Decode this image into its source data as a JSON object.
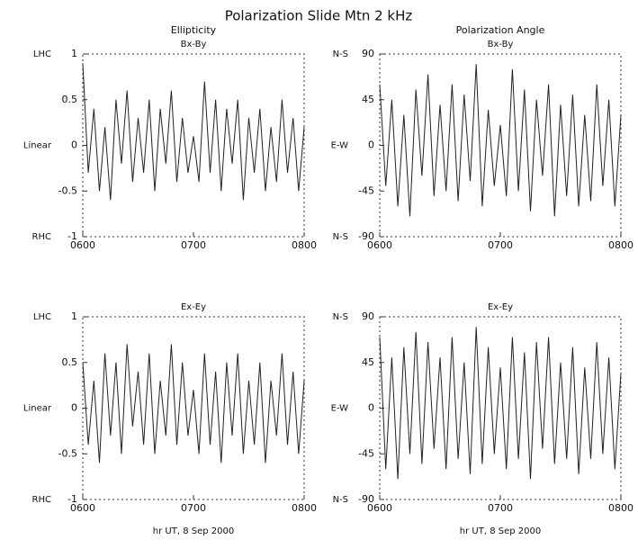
{
  "title": "Polarization Slide Mtn 2 kHz",
  "columns": [
    "Ellipticity",
    "Polarization Angle"
  ],
  "chart_data": [
    {
      "type": "line",
      "title": "Bx-By",
      "color": "#222222",
      "x": [
        6,
        6.05,
        6.1,
        6.15,
        6.2,
        6.25,
        6.3,
        6.35,
        6.4,
        6.45,
        6.5,
        6.55,
        6.6,
        6.65,
        6.7,
        6.75,
        6.8,
        6.85,
        6.9,
        6.95,
        7,
        7.05,
        7.1,
        7.15,
        7.2,
        7.25,
        7.3,
        7.35,
        7.4,
        7.45,
        7.5,
        7.55,
        7.6,
        7.65,
        7.7,
        7.75,
        7.8,
        7.85,
        7.9,
        7.95,
        8
      ],
      "values": [
        0.9,
        -0.3,
        0.4,
        -0.5,
        0.2,
        -0.6,
        0.5,
        -0.2,
        0.6,
        -0.4,
        0.3,
        -0.3,
        0.5,
        -0.5,
        0.4,
        -0.2,
        0.6,
        -0.4,
        0.3,
        -0.3,
        0.1,
        -0.4,
        0.7,
        -0.3,
        0.5,
        -0.5,
        0.4,
        -0.2,
        0.5,
        -0.6,
        0.3,
        -0.3,
        0.4,
        -0.5,
        0.2,
        -0.4,
        0.5,
        -0.3,
        0.3,
        -0.5,
        0.2
      ],
      "xlim": [
        6,
        8
      ],
      "ylim": [
        -1,
        1
      ],
      "xticks": [
        {
          "value": 6,
          "label": "0600"
        },
        {
          "value": 7,
          "label": "0700"
        },
        {
          "value": 8,
          "label": "0800"
        }
      ],
      "yticks": [
        -1,
        -0.5,
        0,
        0.5,
        1
      ],
      "y_side_labels": [
        {
          "value": 1,
          "label": "LHC"
        },
        {
          "value": 0,
          "label": "Linear"
        },
        {
          "value": -1,
          "label": "RHC"
        }
      ]
    },
    {
      "type": "line",
      "title": "Bx-By",
      "color": "#222222",
      "x": [
        6,
        6.05,
        6.1,
        6.15,
        6.2,
        6.25,
        6.3,
        6.35,
        6.4,
        6.45,
        6.5,
        6.55,
        6.6,
        6.65,
        6.7,
        6.75,
        6.8,
        6.85,
        6.9,
        6.95,
        7,
        7.05,
        7.1,
        7.15,
        7.2,
        7.25,
        7.3,
        7.35,
        7.4,
        7.45,
        7.5,
        7.55,
        7.6,
        7.65,
        7.7,
        7.75,
        7.8,
        7.85,
        7.9,
        7.95,
        8
      ],
      "values": [
        60,
        -40,
        45,
        -60,
        30,
        -70,
        55,
        -30,
        70,
        -50,
        40,
        -45,
        60,
        -55,
        50,
        -35,
        80,
        -60,
        35,
        -40,
        20,
        -50,
        75,
        -45,
        55,
        -65,
        45,
        -30,
        60,
        -70,
        40,
        -50,
        50,
        -60,
        30,
        -55,
        60,
        -40,
        45,
        -60,
        30
      ],
      "xlim": [
        6,
        8
      ],
      "ylim": [
        -90,
        90
      ],
      "xticks": [
        {
          "value": 6,
          "label": "0600"
        },
        {
          "value": 7,
          "label": "0700"
        },
        {
          "value": 8,
          "label": "0800"
        }
      ],
      "yticks": [
        -90,
        -45,
        0,
        45,
        90
      ],
      "y_side_labels": [
        {
          "value": 90,
          "label": "N-S"
        },
        {
          "value": 0,
          "label": "E-W"
        },
        {
          "value": -90,
          "label": "N-S"
        }
      ]
    },
    {
      "type": "line",
      "title": "Ex-Ey",
      "color": "#222222",
      "xlabel": "hr UT, 8 Sep 2000",
      "x": [
        6,
        6.05,
        6.1,
        6.15,
        6.2,
        6.25,
        6.3,
        6.35,
        6.4,
        6.45,
        6.5,
        6.55,
        6.6,
        6.65,
        6.7,
        6.75,
        6.8,
        6.85,
        6.9,
        6.95,
        7,
        7.05,
        7.1,
        7.15,
        7.2,
        7.25,
        7.3,
        7.35,
        7.4,
        7.45,
        7.5,
        7.55,
        7.6,
        7.65,
        7.7,
        7.75,
        7.8,
        7.85,
        7.9,
        7.95,
        8
      ],
      "values": [
        0.5,
        -0.4,
        0.3,
        -0.6,
        0.6,
        -0.3,
        0.5,
        -0.5,
        0.7,
        -0.2,
        0.4,
        -0.4,
        0.6,
        -0.5,
        0.3,
        -0.3,
        0.7,
        -0.4,
        0.5,
        -0.3,
        0.2,
        -0.5,
        0.6,
        -0.4,
        0.4,
        -0.6,
        0.5,
        -0.3,
        0.6,
        -0.5,
        0.3,
        -0.4,
        0.5,
        -0.6,
        0.3,
        -0.3,
        0.6,
        -0.4,
        0.4,
        -0.5,
        0.3
      ],
      "xlim": [
        6,
        8
      ],
      "ylim": [
        -1,
        1
      ],
      "xticks": [
        {
          "value": 6,
          "label": "0600"
        },
        {
          "value": 7,
          "label": "0700"
        },
        {
          "value": 8,
          "label": "0800"
        }
      ],
      "yticks": [
        -1,
        -0.5,
        0,
        0.5,
        1
      ],
      "y_side_labels": [
        {
          "value": 1,
          "label": "LHC"
        },
        {
          "value": 0,
          "label": "Linear"
        },
        {
          "value": -1,
          "label": "RHC"
        }
      ]
    },
    {
      "type": "line",
      "title": "Ex-Ey",
      "color": "#222222",
      "xlabel": "hr UT, 8 Sep 2000",
      "x": [
        6,
        6.05,
        6.1,
        6.15,
        6.2,
        6.25,
        6.3,
        6.35,
        6.4,
        6.45,
        6.5,
        6.55,
        6.6,
        6.65,
        6.7,
        6.75,
        6.8,
        6.85,
        6.9,
        6.95,
        7,
        7.05,
        7.1,
        7.15,
        7.2,
        7.25,
        7.3,
        7.35,
        7.4,
        7.45,
        7.5,
        7.55,
        7.6,
        7.65,
        7.7,
        7.75,
        7.8,
        7.85,
        7.9,
        7.95,
        8
      ],
      "values": [
        70,
        -60,
        50,
        -70,
        60,
        -45,
        75,
        -55,
        65,
        -40,
        50,
        -60,
        70,
        -50,
        45,
        -65,
        80,
        -55,
        60,
        -45,
        40,
        -60,
        70,
        -50,
        55,
        -70,
        65,
        -40,
        70,
        -55,
        45,
        -50,
        60,
        -65,
        40,
        -50,
        65,
        -45,
        50,
        -60,
        35
      ],
      "xlim": [
        6,
        8
      ],
      "ylim": [
        -90,
        90
      ],
      "xticks": [
        {
          "value": 6,
          "label": "0600"
        },
        {
          "value": 7,
          "label": "0700"
        },
        {
          "value": 8,
          "label": "0800"
        }
      ],
      "yticks": [
        -90,
        -45,
        0,
        45,
        90
      ],
      "y_side_labels": [
        {
          "value": 90,
          "label": "N-S"
        },
        {
          "value": 0,
          "label": "E-W"
        },
        {
          "value": -90,
          "label": "N-S"
        }
      ]
    }
  ]
}
